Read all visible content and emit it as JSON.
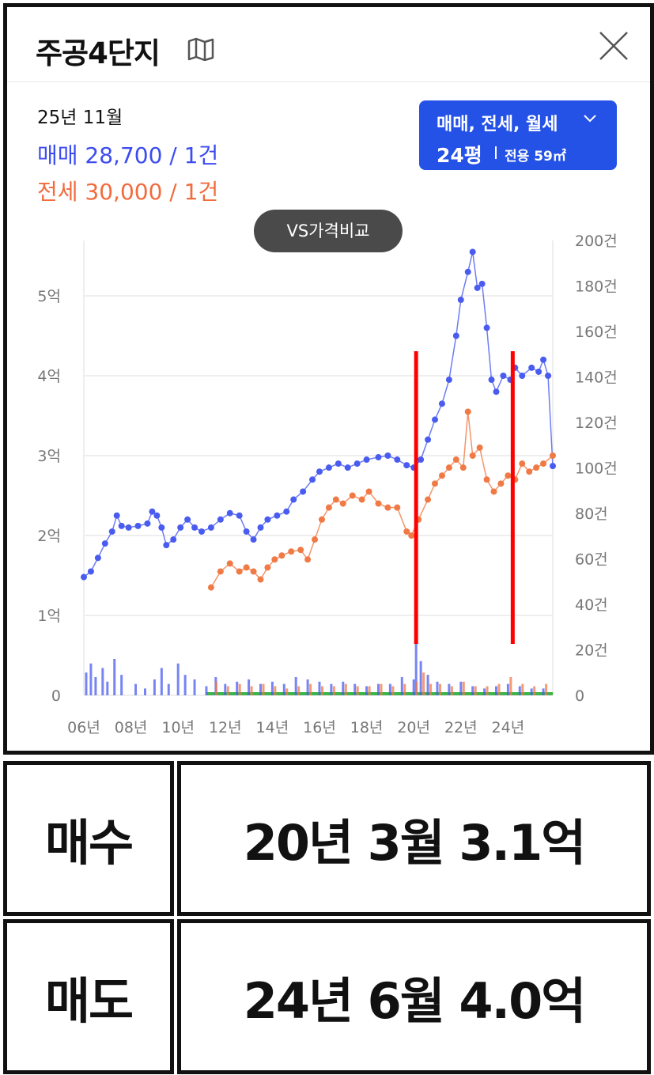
{
  "header": {
    "title": "주공4단지",
    "icons": {
      "map": "map-icon",
      "close": "close-icon"
    }
  },
  "summary": {
    "period": "25년 11월",
    "sale": "매매 28,700 / 1건",
    "jeonse": "전세 30,000 / 1건"
  },
  "filter": {
    "types": "매매, 전세, 월세",
    "size": "24평",
    "area": "전용 59㎡"
  },
  "compare_button": "VS가격비교",
  "colors": {
    "sale": "#4a5cf0",
    "jeonse": "#f07a45",
    "volume_green": "#3cb54a",
    "marker": "#ff0000",
    "filter_bg": "#2451e6"
  },
  "chart_data": {
    "type": "line",
    "x_tick_labels": [
      "06년",
      "08년",
      "10년",
      "12년",
      "14년",
      "16년",
      "18년",
      "20년",
      "22년",
      "24년"
    ],
    "y_left_tick_labels": [
      "0",
      "1억",
      "2억",
      "3억",
      "4억",
      "5억"
    ],
    "y_left_range": [
      0,
      5.7
    ],
    "y_right_tick_labels": [
      "0",
      "20건",
      "40건",
      "60건",
      "80건",
      "100건",
      "120건",
      "140건",
      "160건",
      "180건",
      "200건"
    ],
    "y_right_range": [
      0,
      200
    ],
    "x_range": [
      2006,
      2025.9
    ],
    "grid": true,
    "series": [
      {
        "name": "매매",
        "color": "#4a5cf0",
        "points": [
          [
            2006.0,
            1.48
          ],
          [
            2006.3,
            1.55
          ],
          [
            2006.6,
            1.72
          ],
          [
            2006.9,
            1.9
          ],
          [
            2007.2,
            2.05
          ],
          [
            2007.4,
            2.25
          ],
          [
            2007.6,
            2.12
          ],
          [
            2007.9,
            2.1
          ],
          [
            2008.3,
            2.12
          ],
          [
            2008.7,
            2.15
          ],
          [
            2008.9,
            2.3
          ],
          [
            2009.1,
            2.25
          ],
          [
            2009.3,
            2.1
          ],
          [
            2009.5,
            1.88
          ],
          [
            2009.8,
            1.95
          ],
          [
            2010.1,
            2.1
          ],
          [
            2010.4,
            2.2
          ],
          [
            2010.7,
            2.1
          ],
          [
            2011.0,
            2.05
          ],
          [
            2011.4,
            2.1
          ],
          [
            2011.8,
            2.2
          ],
          [
            2012.2,
            2.28
          ],
          [
            2012.6,
            2.25
          ],
          [
            2012.9,
            2.05
          ],
          [
            2013.2,
            1.95
          ],
          [
            2013.5,
            2.1
          ],
          [
            2013.8,
            2.2
          ],
          [
            2014.2,
            2.25
          ],
          [
            2014.6,
            2.3
          ],
          [
            2014.9,
            2.45
          ],
          [
            2015.3,
            2.55
          ],
          [
            2015.7,
            2.7
          ],
          [
            2016.0,
            2.8
          ],
          [
            2016.4,
            2.85
          ],
          [
            2016.8,
            2.9
          ],
          [
            2017.2,
            2.85
          ],
          [
            2017.6,
            2.9
          ],
          [
            2018.0,
            2.95
          ],
          [
            2018.5,
            2.98
          ],
          [
            2018.9,
            3.0
          ],
          [
            2019.3,
            2.95
          ],
          [
            2019.7,
            2.88
          ],
          [
            2020.0,
            2.85
          ],
          [
            2020.3,
            2.95
          ],
          [
            2020.6,
            3.2
          ],
          [
            2020.9,
            3.45
          ],
          [
            2021.2,
            3.65
          ],
          [
            2021.5,
            3.95
          ],
          [
            2021.8,
            4.5
          ],
          [
            2022.0,
            4.95
          ],
          [
            2022.3,
            5.3
          ],
          [
            2022.5,
            5.55
          ],
          [
            2022.7,
            5.1
          ],
          [
            2022.9,
            5.15
          ],
          [
            2023.1,
            4.6
          ],
          [
            2023.3,
            3.95
          ],
          [
            2023.5,
            3.8
          ],
          [
            2023.8,
            4.0
          ],
          [
            2024.1,
            3.95
          ],
          [
            2024.3,
            4.1
          ],
          [
            2024.6,
            4.0
          ],
          [
            2025.0,
            4.1
          ],
          [
            2025.3,
            4.05
          ],
          [
            2025.5,
            4.2
          ],
          [
            2025.7,
            4.0
          ],
          [
            2025.9,
            2.87
          ]
        ]
      },
      {
        "name": "전세",
        "color": "#f07a45",
        "points": [
          [
            2011.4,
            1.35
          ],
          [
            2011.8,
            1.55
          ],
          [
            2012.2,
            1.65
          ],
          [
            2012.6,
            1.55
          ],
          [
            2012.9,
            1.6
          ],
          [
            2013.2,
            1.55
          ],
          [
            2013.5,
            1.45
          ],
          [
            2013.8,
            1.6
          ],
          [
            2014.1,
            1.7
          ],
          [
            2014.4,
            1.75
          ],
          [
            2014.8,
            1.8
          ],
          [
            2015.2,
            1.82
          ],
          [
            2015.5,
            1.7
          ],
          [
            2015.8,
            1.95
          ],
          [
            2016.1,
            2.2
          ],
          [
            2016.4,
            2.35
          ],
          [
            2016.7,
            2.45
          ],
          [
            2017.0,
            2.4
          ],
          [
            2017.4,
            2.5
          ],
          [
            2017.8,
            2.45
          ],
          [
            2018.1,
            2.55
          ],
          [
            2018.5,
            2.4
          ],
          [
            2018.9,
            2.35
          ],
          [
            2019.3,
            2.35
          ],
          [
            2019.7,
            2.05
          ],
          [
            2019.9,
            2.0
          ],
          [
            2020.2,
            2.2
          ],
          [
            2020.6,
            2.45
          ],
          [
            2020.9,
            2.65
          ],
          [
            2021.2,
            2.75
          ],
          [
            2021.5,
            2.85
          ],
          [
            2021.8,
            2.95
          ],
          [
            2022.1,
            2.85
          ],
          [
            2022.3,
            3.55
          ],
          [
            2022.5,
            3.0
          ],
          [
            2022.8,
            3.1
          ],
          [
            2023.1,
            2.7
          ],
          [
            2023.4,
            2.55
          ],
          [
            2023.7,
            2.65
          ],
          [
            2024.0,
            2.75
          ],
          [
            2024.3,
            2.7
          ],
          [
            2024.6,
            2.9
          ],
          [
            2024.9,
            2.8
          ],
          [
            2025.2,
            2.85
          ],
          [
            2025.5,
            2.9
          ],
          [
            2025.9,
            3.0
          ]
        ]
      }
    ],
    "volume": {
      "sale_bars": [
        [
          2006.1,
          10
        ],
        [
          2006.3,
          14
        ],
        [
          2006.5,
          8
        ],
        [
          2006.8,
          12
        ],
        [
          2007.0,
          6
        ],
        [
          2007.3,
          16
        ],
        [
          2007.6,
          9
        ],
        [
          2008.2,
          5
        ],
        [
          2008.6,
          3
        ],
        [
          2009.0,
          7
        ],
        [
          2009.3,
          12
        ],
        [
          2009.6,
          5
        ],
        [
          2010.0,
          14
        ],
        [
          2010.3,
          9
        ],
        [
          2010.7,
          7
        ],
        [
          2011.2,
          4
        ],
        [
          2011.6,
          8
        ],
        [
          2012.0,
          5
        ],
        [
          2012.5,
          6
        ],
        [
          2013.0,
          7
        ],
        [
          2013.5,
          5
        ],
        [
          2014.0,
          6
        ],
        [
          2014.5,
          5
        ],
        [
          2015.0,
          8
        ],
        [
          2015.5,
          7
        ],
        [
          2016.0,
          6
        ],
        [
          2016.5,
          5
        ],
        [
          2017.0,
          6
        ],
        [
          2017.5,
          5
        ],
        [
          2018.0,
          4
        ],
        [
          2018.5,
          5
        ],
        [
          2019.0,
          5
        ],
        [
          2019.5,
          8
        ],
        [
          2020.0,
          7
        ],
        [
          2020.1,
          35
        ],
        [
          2020.3,
          15
        ],
        [
          2020.6,
          9
        ],
        [
          2021.0,
          6
        ],
        [
          2021.5,
          5
        ],
        [
          2022.0,
          6
        ],
        [
          2022.5,
          4
        ],
        [
          2023.0,
          3
        ],
        [
          2023.5,
          4
        ],
        [
          2024.0,
          5
        ],
        [
          2024.5,
          4
        ],
        [
          2025.0,
          3
        ],
        [
          2025.5,
          3
        ]
      ],
      "jeonse_bars": [
        [
          2011.5,
          6
        ],
        [
          2012.0,
          4
        ],
        [
          2012.5,
          5
        ],
        [
          2013.0,
          4
        ],
        [
          2013.5,
          5
        ],
        [
          2014.0,
          4
        ],
        [
          2014.5,
          3
        ],
        [
          2015.0,
          4
        ],
        [
          2015.5,
          5
        ],
        [
          2016.0,
          4
        ],
        [
          2016.5,
          4
        ],
        [
          2017.0,
          5
        ],
        [
          2017.5,
          4
        ],
        [
          2018.0,
          4
        ],
        [
          2018.5,
          5
        ],
        [
          2019.0,
          4
        ],
        [
          2019.5,
          5
        ],
        [
          2020.0,
          6
        ],
        [
          2020.3,
          10
        ],
        [
          2020.6,
          5
        ],
        [
          2021.0,
          5
        ],
        [
          2021.5,
          4
        ],
        [
          2022.0,
          6
        ],
        [
          2022.5,
          4
        ],
        [
          2023.0,
          4
        ],
        [
          2023.5,
          5
        ],
        [
          2024.0,
          8
        ],
        [
          2024.5,
          5
        ],
        [
          2025.0,
          4
        ],
        [
          2025.5,
          5
        ]
      ],
      "green_baseline": [
        2011.2,
        2025.9
      ]
    },
    "markers": [
      {
        "x": 2020.1,
        "label": "매수"
      },
      {
        "x": 2024.2,
        "label": "매도"
      }
    ]
  },
  "trades": [
    {
      "type": "매수",
      "detail": "20년 3월 3.1억"
    },
    {
      "type": "매도",
      "detail": "24년 6월 4.0억"
    }
  ]
}
